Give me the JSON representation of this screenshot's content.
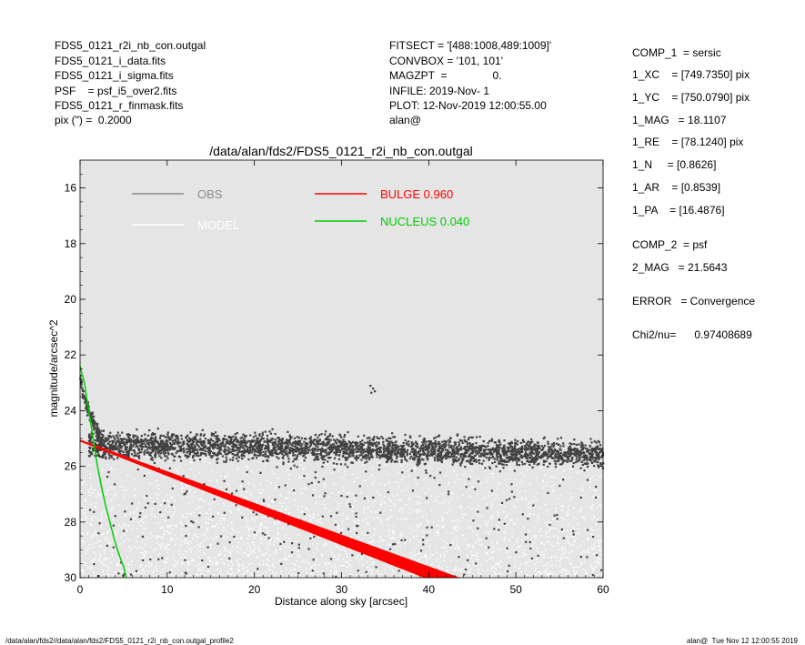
{
  "header_left": [
    "FDS5_0121_r2i_nb_con.outgal",
    "FDS5_0121_i_data.fits",
    "FDS5_0121_i_sigma.fits",
    "PSF    = psf_i5_over2.fits",
    "FDS5_0121_r_finmask.fits",
    "pix (\") =  0.2000"
  ],
  "header_mid": [
    "FITSECT = '[488:1008,489:1009]'",
    "CONVBOX = '101, 101'",
    "MAGZPT  =               0.",
    "INFILE: 2019-Nov- 1",
    "PLOT: 12-Nov-2019 12:00:55.00",
    "alan@"
  ],
  "params": [
    "COMP_1  = sersic",
    "1_XC    = [749.7350] pix",
    "1_YC    = [750.0790] pix",
    "1_MAG   = 18.1107",
    "1_RE    = [78.1240] pix",
    "1_N     = [0.8626]",
    "1_AR    = [0.8539]",
    "1_PA    = [16.4876]",
    "COMP_2  = psf",
    "2_MAG   = 21.5643",
    "ERROR   = Convergence",
    "Chi2/nu=      0.97408689"
  ],
  "footer": {
    "left": "/data/alan/fds2//data/alan/fds2/FDS5_0121_r2i_nb_con.outgal_profile2",
    "right": "alan@  Tue Nov 12 12:00:55 2019"
  },
  "chart_data": {
    "type": "scatter",
    "title": "/data/alan/fds2/FDS5_0121_r2i_nb_con.outgal",
    "xlabel": "Distance along sky [arcsec]",
    "ylabel": "magnitude/arcsec^2",
    "xlim": [
      0,
      60
    ],
    "ylim": [
      30,
      15
    ],
    "y_inverted": true,
    "x_ticks": [
      0,
      10,
      20,
      30,
      40,
      50,
      60
    ],
    "y_ticks": [
      16,
      18,
      20,
      22,
      24,
      26,
      28,
      30
    ],
    "background": "#e5e5e5",
    "legend": [
      {
        "label": "OBS",
        "color": "#8c8c8c",
        "kind": "line"
      },
      {
        "label": "MODEL",
        "color": "#ffffff",
        "kind": "line"
      },
      {
        "label": "BULGE  0.960",
        "color": "#ff0000",
        "kind": "line"
      },
      {
        "label": "NUCLEUS  0.040",
        "color": "#00cc00",
        "kind": "line"
      }
    ],
    "series": [
      {
        "name": "OBS",
        "color": "#404040",
        "model": "sky background ~25.4 mag, scatter ±0.5, upper envelope ~24.6; steep rise near center",
        "sample_points": [
          {
            "x": 0.2,
            "y": 22.5
          },
          {
            "x": 0.5,
            "y": 23.3
          },
          {
            "x": 1.0,
            "y": 24.2
          },
          {
            "x": 2.0,
            "y": 24.7
          },
          {
            "x": 5,
            "y": 25.0
          },
          {
            "x": 10,
            "y": 25.2
          },
          {
            "x": 20,
            "y": 25.4
          },
          {
            "x": 30,
            "y": 25.5
          },
          {
            "x": 33.5,
            "y": 23.2
          },
          {
            "x": 40,
            "y": 25.5
          },
          {
            "x": 50,
            "y": 25.5
          },
          {
            "x": 60,
            "y": 25.6
          }
        ]
      },
      {
        "name": "MODEL",
        "color": "#ffffff",
        "model": "spread between ~25.5 and 30 mag, denser towards fainter magnitudes"
      },
      {
        "name": "BULGE  0.960",
        "color": "#ff0000",
        "model": "sersic band",
        "upper_edge": [
          {
            "x": 0,
            "y": 25.05
          },
          {
            "x": 43.5,
            "y": 30.0
          }
        ],
        "lower_edge": [
          {
            "x": 0,
            "y": 25.1
          },
          {
            "x": 39.5,
            "y": 30.0
          }
        ]
      },
      {
        "name": "NUCLEUS  0.040",
        "color": "#00cc00",
        "model": "psf curve",
        "points": [
          {
            "x": 0.0,
            "y": 22.4
          },
          {
            "x": 0.5,
            "y": 23.0
          },
          {
            "x": 1.0,
            "y": 24.0
          },
          {
            "x": 1.5,
            "y": 25.0
          },
          {
            "x": 2.0,
            "y": 26.0
          },
          {
            "x": 2.5,
            "y": 26.8
          },
          {
            "x": 3.0,
            "y": 27.5
          },
          {
            "x": 3.5,
            "y": 28.1
          },
          {
            "x": 4.0,
            "y": 28.7
          },
          {
            "x": 4.5,
            "y": 29.2
          },
          {
            "x": 5.0,
            "y": 29.6
          },
          {
            "x": 5.3,
            "y": 30.0
          }
        ]
      }
    ]
  }
}
